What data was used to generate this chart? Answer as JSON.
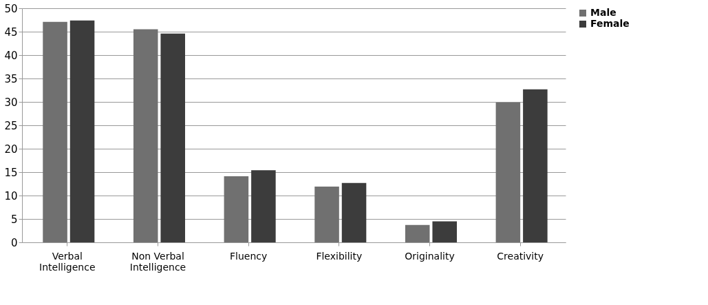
{
  "chart_data": {
    "type": "bar",
    "categories": [
      "Verbal Intelligence",
      "Non Verbal Intelligence",
      "Fluency",
      "Flexibility",
      "Originality",
      "Creativity"
    ],
    "series": [
      {
        "name": "Male",
        "color": "#707070",
        "values": [
          47.1,
          45.5,
          14.1,
          11.9,
          3.7,
          29.9
        ]
      },
      {
        "name": "Female",
        "color": "#3c3c3c",
        "values": [
          47.4,
          44.6,
          15.4,
          12.7,
          4.5,
          32.7
        ]
      }
    ],
    "ylim": [
      0,
      50
    ],
    "yticks": [
      0,
      5,
      10,
      15,
      20,
      25,
      30,
      35,
      40,
      45,
      50
    ],
    "grid": "y",
    "legend": "right"
  }
}
